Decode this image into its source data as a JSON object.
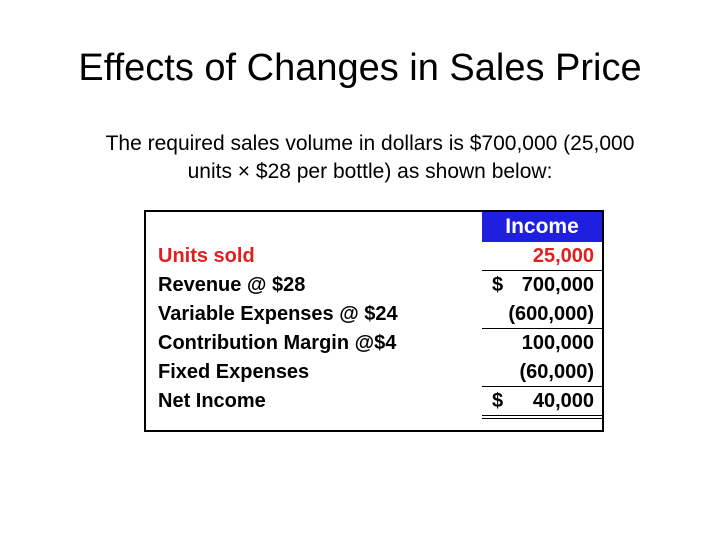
{
  "slide": {
    "title": "Effects of Changes in Sales Price",
    "subtitle_line1": "The required sales volume in dollars is $700,000 (25,000",
    "subtitle_line2": "units × $28 per bottle) as shown below:"
  },
  "table": {
    "header": "Income",
    "rows": [
      {
        "label": "Units sold",
        "currency": "",
        "value": "25,000"
      },
      {
        "label": "Revenue @ $28",
        "currency": "$",
        "value": "700,000"
      },
      {
        "label": "Variable Expenses @ $24",
        "currency": "",
        "value": "(600,000)"
      },
      {
        "label": "Contribution Margin @$4",
        "currency": "",
        "value": "100,000"
      },
      {
        "label": "Fixed Expenses",
        "currency": "",
        "value": "(60,000)"
      },
      {
        "label": "Net Income",
        "currency": "$",
        "value": "40,000"
      }
    ]
  }
}
